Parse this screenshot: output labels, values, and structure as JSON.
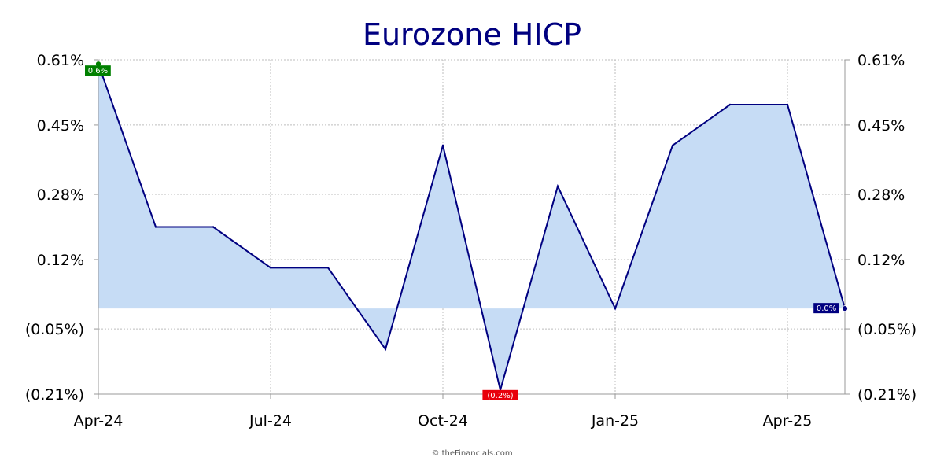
{
  "chart_data": {
    "type": "area",
    "title": "Eurozone HICP",
    "x": [
      "2024-04",
      "2024-05",
      "2024-06",
      "2024-07",
      "2024-08",
      "2024-09",
      "2024-10",
      "2024-11",
      "2024-12",
      "2025-01",
      "2025-02",
      "2025-03",
      "2025-04",
      "2025-05"
    ],
    "series": [
      {
        "values": [
          0.6,
          0.2,
          0.2,
          0.1,
          0.1,
          -0.1,
          0.4,
          -0.2,
          0.3,
          0.0,
          0.4,
          0.5,
          0.5,
          0.0
        ]
      }
    ],
    "x_ticks": [
      "Apr-24",
      "Jul-24",
      "Oct-24",
      "Jan-25",
      "Apr-25"
    ],
    "y_ticks": [
      "0.61%",
      "0.45%",
      "0.28%",
      "0.12%",
      "(0.05%)",
      "(0.21%)"
    ],
    "y_tick_values": [
      0.61,
      0.45,
      0.28,
      0.12,
      -0.05,
      -0.21
    ],
    "ylim": [
      -0.21,
      0.61
    ],
    "grid": true,
    "labels": {
      "max": "0.6%",
      "min": "(0.2%)",
      "last": "0.0%"
    },
    "colors": {
      "line": "#000080",
      "fill": "#c6dcf5",
      "max_label": "#008000",
      "min_label": "#e8000b",
      "last_label": "#000080",
      "title": "#000080"
    }
  },
  "credit": "© theFinancials.com"
}
